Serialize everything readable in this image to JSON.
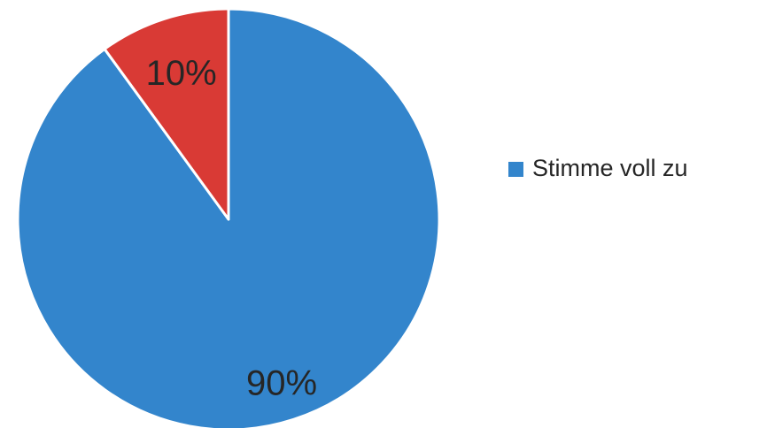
{
  "chart_data": {
    "type": "pie",
    "slices": [
      {
        "label": "Stimme voll zu",
        "value": 90,
        "display": "90%",
        "color": "#3385CC"
      },
      {
        "label": "",
        "value": 10,
        "display": "10%",
        "color": "#D93A35"
      }
    ],
    "start_angle_deg": 0,
    "direction": "clockwise",
    "slice_border_color": "#FFFFFF",
    "legend": {
      "placement": "right",
      "entries": [
        {
          "label": "Stimme voll zu",
          "color": "#3385CC"
        }
      ]
    }
  }
}
